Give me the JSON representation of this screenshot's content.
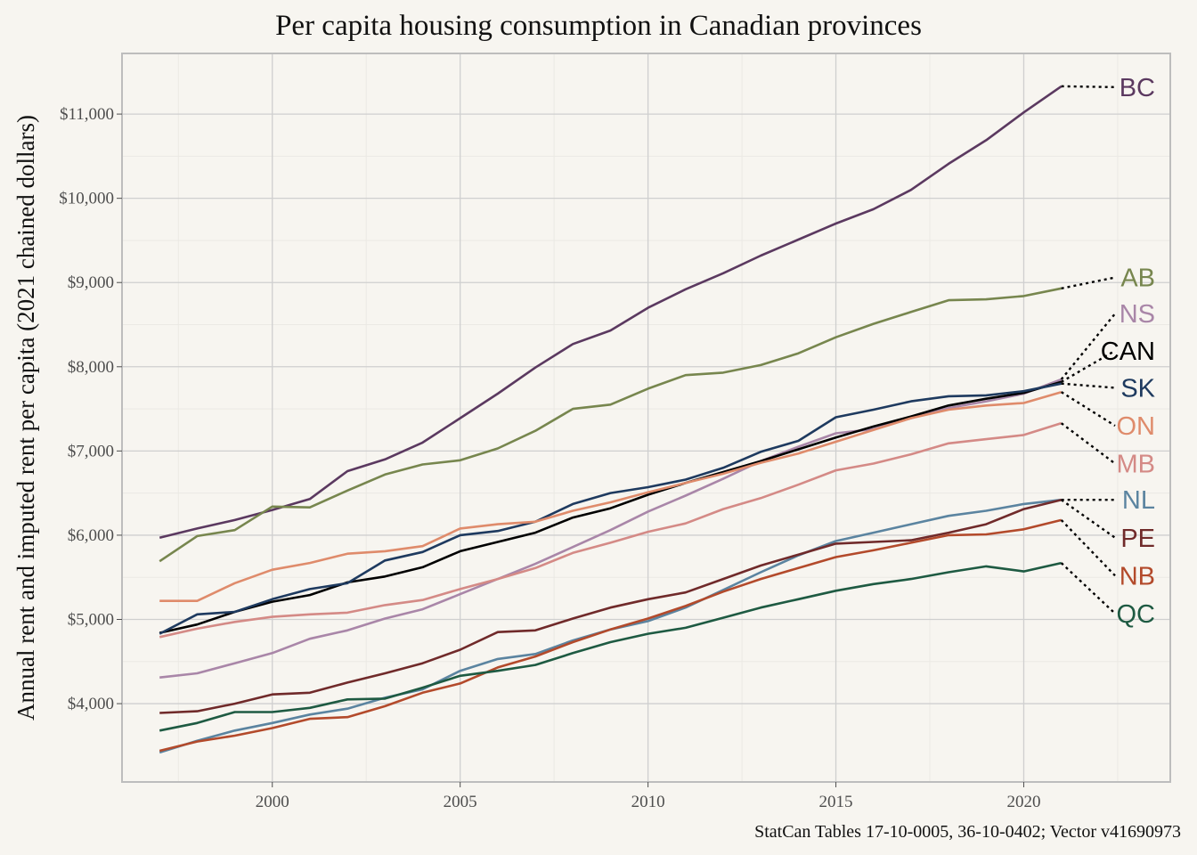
{
  "chart_data": {
    "type": "line",
    "title": "Per capita housing consumption in Canadian provinces",
    "xlabel": "",
    "ylabel": "Annual rent and imputed rent per capita (2021 chained dollars)",
    "caption": "StatCan Tables 17-10-0005, 36-10-0402; Vector v41690973",
    "xlim": [
      1996.0,
      2023.9
    ],
    "ylim": [
      3070,
      11720
    ],
    "x_ticks": [
      2000,
      2005,
      2010,
      2015,
      2020
    ],
    "x_tick_labels": [
      "2000",
      "2005",
      "2010",
      "2015",
      "2020"
    ],
    "y_ticks": [
      4000,
      5000,
      6000,
      7000,
      8000,
      9000,
      10000,
      11000
    ],
    "y_tick_labels": [
      "$4,000",
      "$5,000",
      "$6,000",
      "$7,000",
      "$8,000",
      "$9,000",
      "$10,000",
      "$11,000"
    ],
    "grid": true,
    "legend": "direct labels at right end of lines",
    "x": [
      1997,
      1998,
      1999,
      2000,
      2001,
      2002,
      2003,
      2004,
      2005,
      2006,
      2007,
      2008,
      2009,
      2010,
      2011,
      2012,
      2013,
      2014,
      2015,
      2016,
      2017,
      2018,
      2019,
      2020,
      2021
    ],
    "series": [
      {
        "name": "BC",
        "color": "#5b3960",
        "label_y": 11320,
        "values": [
          5970,
          6080,
          6180,
          6300,
          6430,
          6760,
          6900,
          7100,
          7390,
          7680,
          7990,
          8270,
          8430,
          8700,
          8920,
          9110,
          9320,
          9510,
          9700,
          9870,
          10100,
          10410,
          10690,
          11020,
          11330
        ]
      },
      {
        "name": "AB",
        "color": "#77864e",
        "label_y": 9060,
        "values": [
          5690,
          5990,
          6060,
          6340,
          6330,
          6530,
          6720,
          6840,
          6890,
          7030,
          7240,
          7500,
          7550,
          7740,
          7900,
          7930,
          8020,
          8160,
          8350,
          8510,
          8650,
          8790,
          8800,
          8840,
          8930
        ]
      },
      {
        "name": "NS",
        "color": "#a986a8",
        "label_y": 8630,
        "values": [
          4310,
          4360,
          4480,
          4600,
          4770,
          4870,
          5010,
          5120,
          5300,
          5480,
          5660,
          5860,
          6060,
          6280,
          6470,
          6670,
          6880,
          7050,
          7210,
          7260,
          7390,
          7510,
          7590,
          7680,
          7850
        ]
      },
      {
        "name": "CAN",
        "color": "#000000",
        "label_y": 8190,
        "values": [
          4840,
          4940,
          5090,
          5210,
          5290,
          5440,
          5510,
          5620,
          5810,
          5920,
          6030,
          6210,
          6320,
          6480,
          6620,
          6750,
          6880,
          7020,
          7160,
          7290,
          7410,
          7540,
          7620,
          7690,
          7820
        ]
      },
      {
        "name": "SK",
        "color": "#1e3a5f",
        "label_y": 7750,
        "values": [
          4830,
          5060,
          5090,
          5240,
          5360,
          5430,
          5700,
          5800,
          6000,
          6050,
          6160,
          6370,
          6500,
          6570,
          6660,
          6800,
          6990,
          7120,
          7400,
          7490,
          7590,
          7650,
          7660,
          7710,
          7800
        ]
      },
      {
        "name": "ON",
        "color": "#df8b6b",
        "label_y": 7300,
        "values": [
          5220,
          5220,
          5430,
          5590,
          5670,
          5780,
          5810,
          5870,
          6080,
          6130,
          6160,
          6290,
          6390,
          6510,
          6620,
          6730,
          6860,
          6970,
          7110,
          7250,
          7390,
          7490,
          7540,
          7570,
          7700
        ]
      },
      {
        "name": "MB",
        "color": "#d48a86",
        "label_y": 6850,
        "values": [
          4790,
          4890,
          4970,
          5030,
          5060,
          5080,
          5170,
          5230,
          5360,
          5480,
          5610,
          5790,
          5910,
          6040,
          6140,
          6310,
          6440,
          6600,
          6770,
          6850,
          6960,
          7090,
          7140,
          7190,
          7330
        ]
      },
      {
        "name": "NL",
        "color": "#5b84a0",
        "label_y": 6420,
        "values": [
          3420,
          3560,
          3680,
          3770,
          3870,
          3940,
          4070,
          4170,
          4390,
          4530,
          4590,
          4750,
          4880,
          4980,
          5140,
          5350,
          5560,
          5760,
          5930,
          6030,
          6130,
          6230,
          6290,
          6370,
          6420
        ]
      },
      {
        "name": "PE",
        "color": "#702a2a",
        "label_y": 5970,
        "values": [
          3890,
          3910,
          4000,
          4110,
          4130,
          4250,
          4360,
          4480,
          4640,
          4850,
          4870,
          5010,
          5140,
          5240,
          5320,
          5480,
          5640,
          5770,
          5900,
          5920,
          5940,
          6030,
          6130,
          6310,
          6420
        ]
      },
      {
        "name": "NB",
        "color": "#b34a2b",
        "label_y": 5520,
        "values": [
          3440,
          3550,
          3620,
          3710,
          3820,
          3840,
          3970,
          4130,
          4240,
          4430,
          4560,
          4730,
          4880,
          5010,
          5160,
          5330,
          5480,
          5610,
          5740,
          5820,
          5910,
          6000,
          6010,
          6070,
          6180
        ]
      },
      {
        "name": "QC",
        "color": "#1e5a42",
        "label_y": 5070,
        "values": [
          3680,
          3770,
          3900,
          3900,
          3950,
          4050,
          4060,
          4190,
          4330,
          4390,
          4460,
          4600,
          4730,
          4830,
          4900,
          5020,
          5140,
          5240,
          5340,
          5420,
          5480,
          5560,
          5630,
          5570,
          5670
        ]
      }
    ]
  }
}
